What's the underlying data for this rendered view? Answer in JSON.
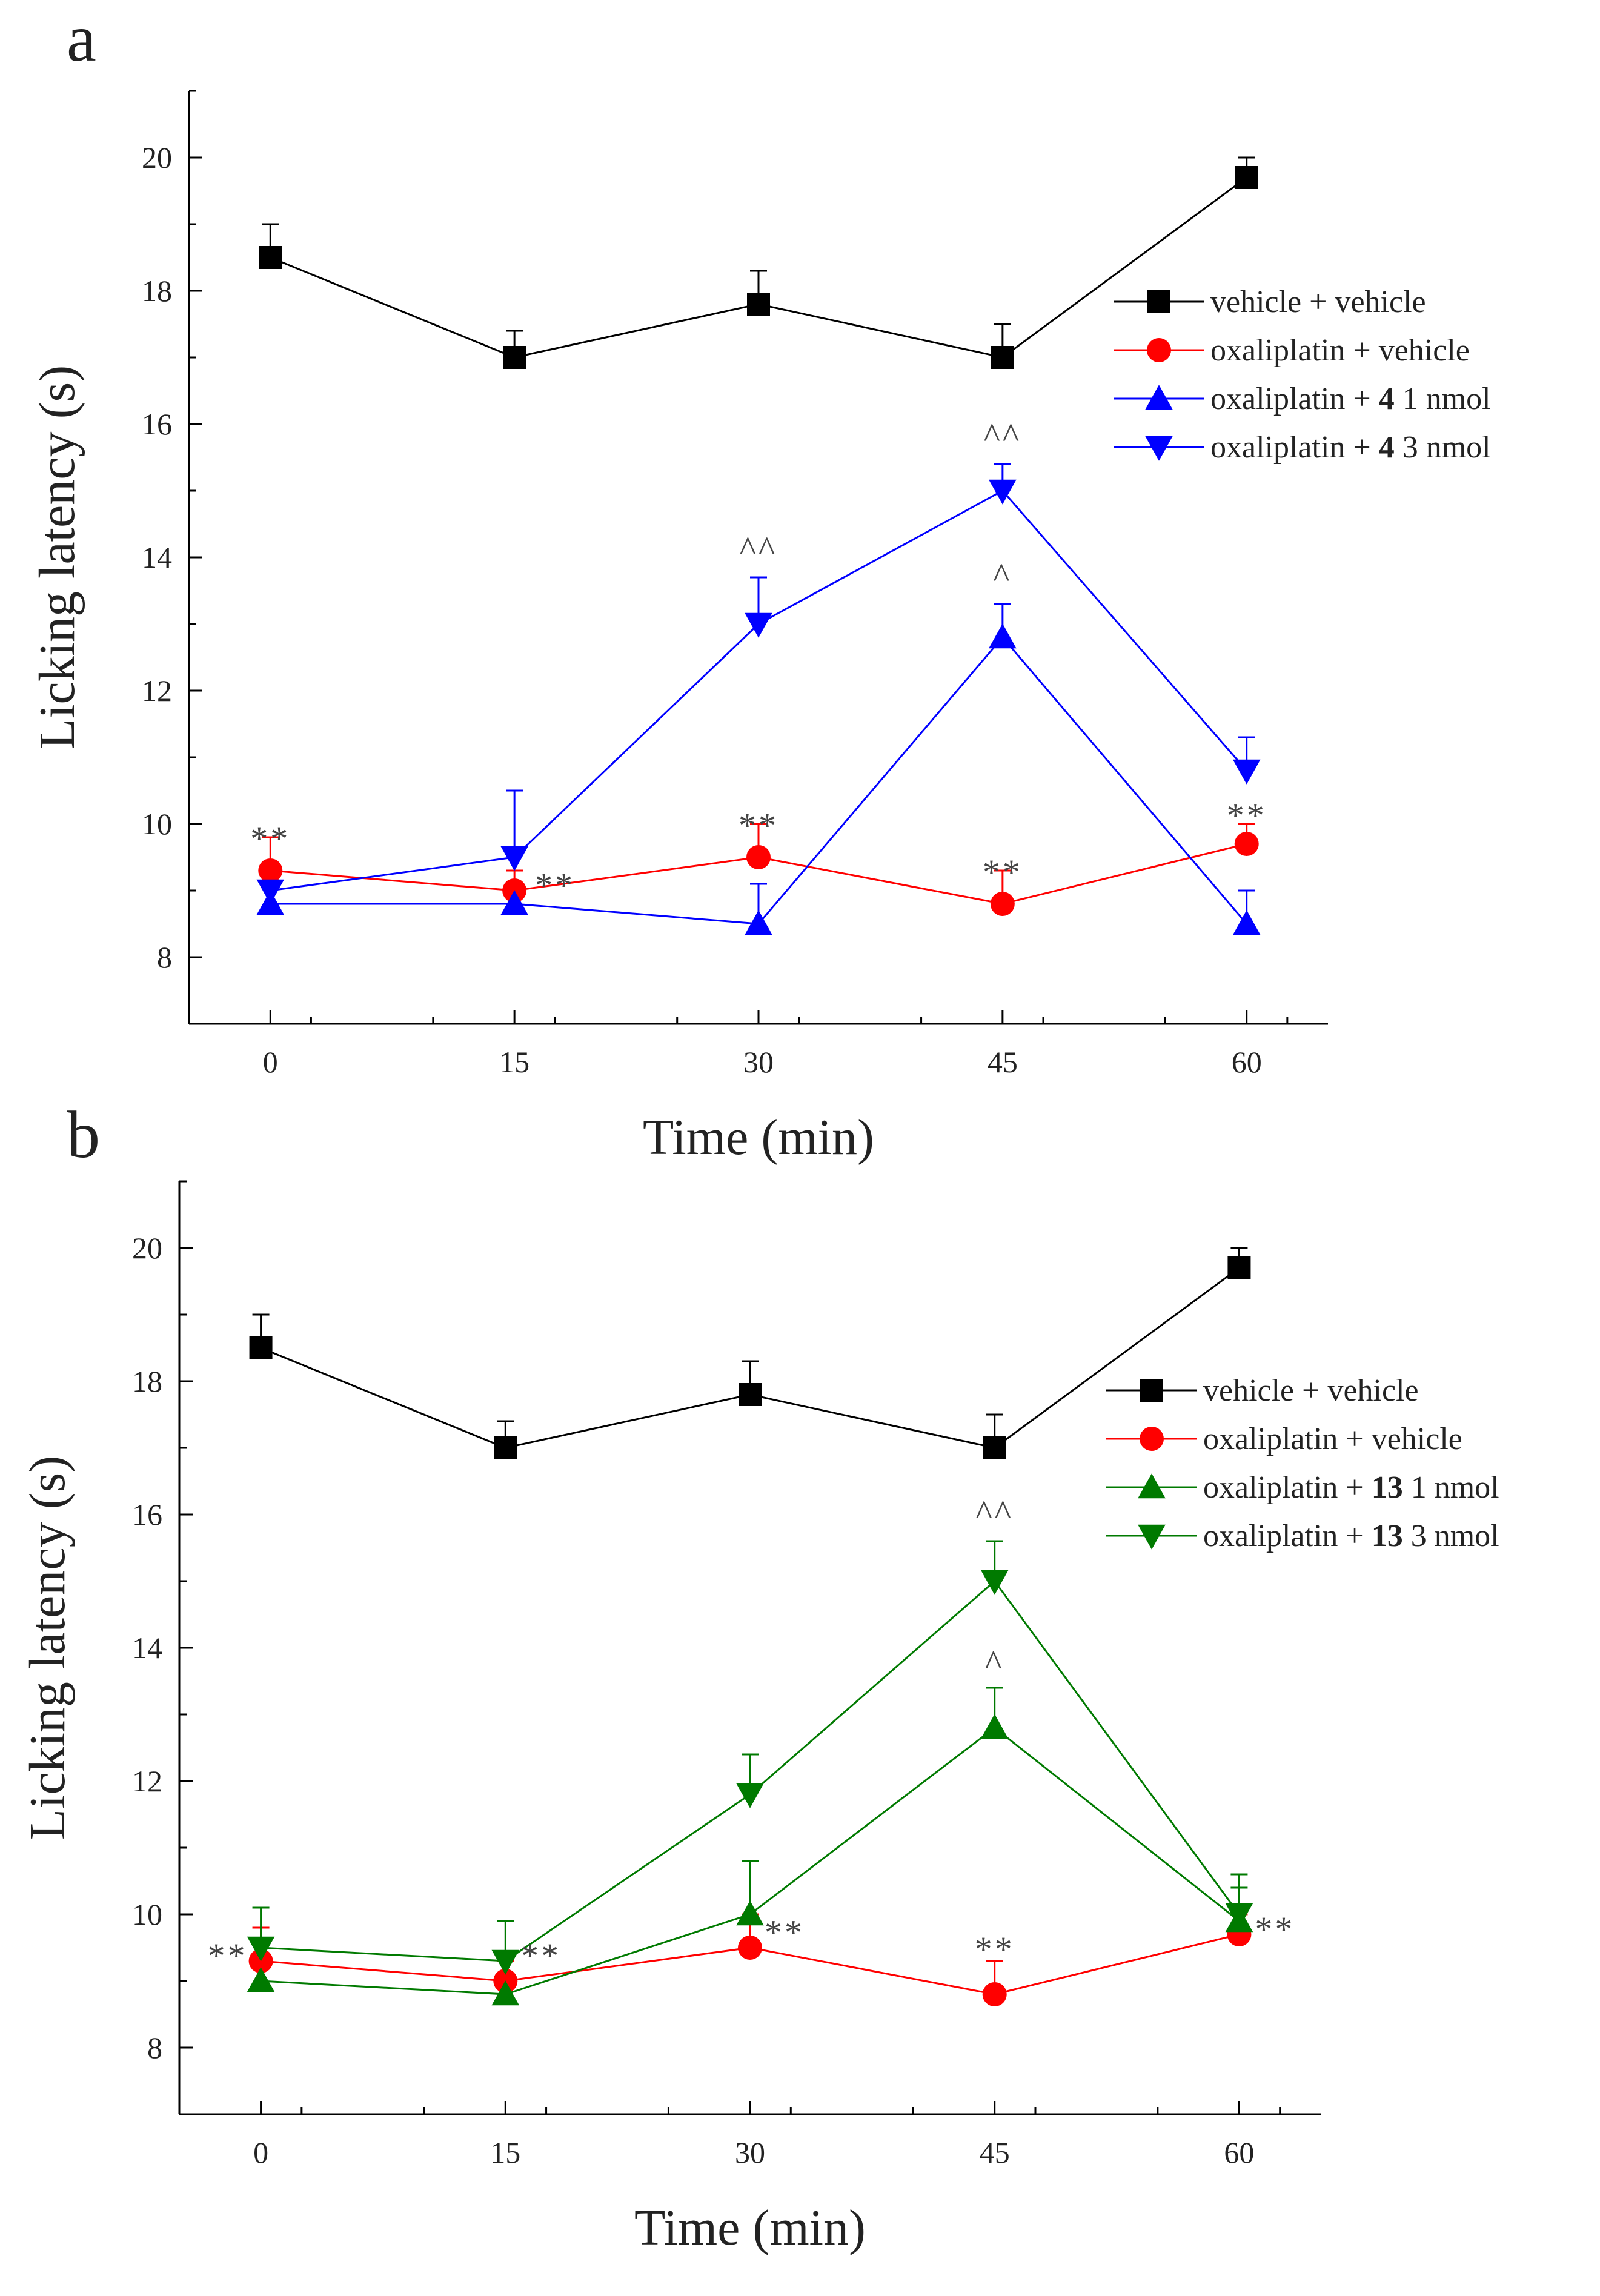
{
  "chart_data": [
    {
      "type": "line",
      "panel_label": "a",
      "xlabel": "Time (min)",
      "ylabel": "Licking latency (s)",
      "x": [
        0,
        15,
        30,
        45,
        60
      ],
      "xlim": [
        -5,
        65
      ],
      "ylim": [
        7,
        21
      ],
      "x_ticks": [
        0,
        15,
        30,
        45,
        60
      ],
      "x_tick_labels": [
        "0",
        "15",
        "30",
        "45",
        "60"
      ],
      "y_ticks": [
        8,
        10,
        12,
        14,
        16,
        18,
        20
      ],
      "y_tick_labels": [
        "8",
        "10",
        "12",
        "14",
        "16",
        "18",
        "20"
      ],
      "legend_position": "right",
      "series": [
        {
          "name": "vehicle + vehicle",
          "legend_label": {
            "pre": "vehicle + vehicle",
            "bold": "",
            "post": ""
          },
          "color": "#000000",
          "marker": "square",
          "values": [
            18.5,
            17.0,
            17.8,
            17.0,
            19.7
          ],
          "errors": [
            0.5,
            0.4,
            0.5,
            0.5,
            0.3
          ]
        },
        {
          "name": "oxaliplatin + vehicle",
          "legend_label": {
            "pre": "oxaliplatin + vehicle",
            "bold": "",
            "post": ""
          },
          "color": "#ff0000",
          "marker": "circle",
          "values": [
            9.3,
            9.0,
            9.5,
            8.8,
            9.7
          ],
          "errors": [
            0.5,
            0.3,
            0.5,
            0.5,
            0.3
          ]
        },
        {
          "name": "oxaliplatin + 4 1 nmol",
          "legend_label": {
            "pre": "oxaliplatin + ",
            "bold": "4",
            "post": " 1 nmol"
          },
          "color": "#0000ff",
          "marker": "triangle-up",
          "values": [
            8.8,
            8.8,
            8.5,
            12.8,
            8.5
          ],
          "errors": [
            0.3,
            0.3,
            0.6,
            0.5,
            0.5
          ]
        },
        {
          "name": "oxaliplatin + 4 3 nmol",
          "legend_label": {
            "pre": "oxaliplatin + ",
            "bold": "4",
            "post": " 3 nmol"
          },
          "color": "#0000ff",
          "marker": "triangle-down",
          "values": [
            9.0,
            9.5,
            13.0,
            15.0,
            10.8
          ],
          "errors": [
            0.3,
            1.0,
            0.7,
            0.4,
            0.5
          ]
        }
      ],
      "annotations": [
        {
          "text": "**",
          "x": 0,
          "y": 9.6,
          "anchor": "middle",
          "dx": 0
        },
        {
          "text": "**",
          "x": 15,
          "y": 8.9,
          "anchor": "start",
          "dx": 34
        },
        {
          "text": "**",
          "x": 30,
          "y": 9.8,
          "anchor": "middle",
          "dx": 0
        },
        {
          "text": "**",
          "x": 45,
          "y": 9.1,
          "anchor": "middle",
          "dx": 0
        },
        {
          "text": "**",
          "x": 60,
          "y": 9.95,
          "anchor": "middle",
          "dx": 0
        },
        {
          "text": "^^",
          "x": 30,
          "y": 13.95,
          "anchor": "middle",
          "dx": 0
        },
        {
          "text": "^",
          "x": 45,
          "y": 13.55,
          "anchor": "middle",
          "dx": 0
        },
        {
          "text": "^^",
          "x": 45,
          "y": 15.65,
          "anchor": "middle",
          "dx": 0
        }
      ]
    },
    {
      "type": "line",
      "panel_label": "b",
      "xlabel": "Time (min)",
      "ylabel": "Licking latency (s)",
      "x": [
        0,
        15,
        30,
        45,
        60
      ],
      "xlim": [
        -5,
        65
      ],
      "ylim": [
        7,
        21
      ],
      "x_ticks": [
        0,
        15,
        30,
        45,
        60
      ],
      "x_tick_labels": [
        "0",
        "15",
        "30",
        "45",
        "60"
      ],
      "y_ticks": [
        8,
        10,
        12,
        14,
        16,
        18,
        20
      ],
      "y_tick_labels": [
        "8",
        "10",
        "12",
        "14",
        "16",
        "18",
        "20"
      ],
      "legend_position": "right",
      "series": [
        {
          "name": "vehicle + vehicle",
          "legend_label": {
            "pre": "vehicle + vehicle",
            "bold": "",
            "post": ""
          },
          "color": "#000000",
          "marker": "square",
          "values": [
            18.5,
            17.0,
            17.8,
            17.0,
            19.7
          ],
          "errors": [
            0.5,
            0.4,
            0.5,
            0.5,
            0.3
          ]
        },
        {
          "name": "oxaliplatin + vehicle",
          "legend_label": {
            "pre": "oxaliplatin + vehicle",
            "bold": "",
            "post": ""
          },
          "color": "#ff0000",
          "marker": "circle",
          "values": [
            9.3,
            9.0,
            9.5,
            8.8,
            9.7
          ],
          "errors": [
            0.5,
            0.3,
            0.5,
            0.5,
            0.3
          ]
        },
        {
          "name": "oxaliplatin + 13 1 nmol",
          "legend_label": {
            "pre": "oxaliplatin + ",
            "bold": "13",
            "post": " 1 nmol"
          },
          "color": "#007a00",
          "marker": "triangle-up",
          "values": [
            9.0,
            8.8,
            10.0,
            12.8,
            9.9
          ],
          "errors": [
            0.3,
            0.3,
            0.8,
            0.6,
            0.5
          ]
        },
        {
          "name": "oxaliplatin + 13 3 nmol",
          "legend_label": {
            "pre": "oxaliplatin + ",
            "bold": "13",
            "post": " 3 nmol"
          },
          "color": "#007a00",
          "marker": "triangle-down",
          "values": [
            9.5,
            9.3,
            11.8,
            15.0,
            10.0
          ],
          "errors": [
            0.6,
            0.6,
            0.6,
            0.6,
            0.6
          ]
        }
      ],
      "annotations": [
        {
          "text": "**",
          "x": 0,
          "y": 9.2,
          "anchor": "end",
          "dx": -22
        },
        {
          "text": "**",
          "x": 15,
          "y": 9.2,
          "anchor": "start",
          "dx": 26
        },
        {
          "text": "**",
          "x": 30,
          "y": 9.55,
          "anchor": "start",
          "dx": 24
        },
        {
          "text": "**",
          "x": 45,
          "y": 9.3,
          "anchor": "middle",
          "dx": 0
        },
        {
          "text": "**",
          "x": 60,
          "y": 9.6,
          "anchor": "start",
          "dx": 26
        },
        {
          "text": "^",
          "x": 45,
          "y": 13.6,
          "anchor": "middle",
          "dx": 0
        },
        {
          "text": "^^",
          "x": 45,
          "y": 15.85,
          "anchor": "middle",
          "dx": 0
        }
      ]
    }
  ]
}
